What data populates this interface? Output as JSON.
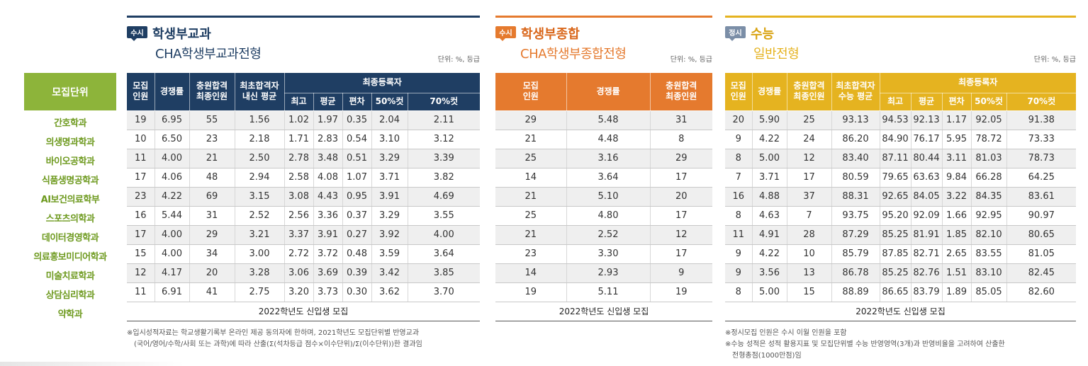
{
  "units": {
    "header": "모집단위",
    "items": [
      "간호학과",
      "의생명과학과",
      "바이오공학과",
      "식품생명공학과",
      "AI보건의료학부",
      "스포츠의학과",
      "데이터경영학과",
      "의료홍보미디어학과",
      "미술치료학과",
      "상담심리학과",
      "약학과"
    ]
  },
  "s1": {
    "badge": "수시",
    "title": "학생부교과",
    "subtitle": "CHA학생부교과전형",
    "unit_note": "단위: %, 등급",
    "headers": {
      "recruit": [
        "모집",
        "인원"
      ],
      "competition": "경쟁률",
      "add_pass": [
        "충원합격",
        "최종인원"
      ],
      "final_pass": [
        "최초합격자",
        "내신 평균"
      ],
      "group": "최종등록자",
      "sub": [
        "최고",
        "평균",
        "편차",
        "50%컷",
        "70%컷"
      ]
    },
    "rows": [
      [
        "19",
        "6.95",
        "55",
        "1.56",
        "1.02",
        "1.97",
        "0.35",
        "2.04",
        "2.11"
      ],
      [
        "10",
        "6.50",
        "23",
        "2.18",
        "1.71",
        "2.83",
        "0.54",
        "3.10",
        "3.12"
      ],
      [
        "11",
        "4.00",
        "21",
        "2.50",
        "2.78",
        "3.48",
        "0.51",
        "3.29",
        "3.39"
      ],
      [
        "17",
        "4.06",
        "48",
        "2.94",
        "2.58",
        "4.08",
        "1.07",
        "3.71",
        "3.82"
      ],
      [
        "23",
        "4.22",
        "69",
        "3.15",
        "3.08",
        "4.43",
        "0.95",
        "3.91",
        "4.69"
      ],
      [
        "16",
        "5.44",
        "31",
        "2.52",
        "2.56",
        "3.36",
        "0.37",
        "3.29",
        "3.55"
      ],
      [
        "17",
        "4.00",
        "29",
        "3.21",
        "3.37",
        "3.91",
        "0.27",
        "3.92",
        "4.00"
      ],
      [
        "15",
        "4.00",
        "34",
        "3.00",
        "2.72",
        "3.72",
        "0.48",
        "3.59",
        "3.64"
      ],
      [
        "12",
        "4.17",
        "20",
        "3.28",
        "3.06",
        "3.69",
        "0.39",
        "3.42",
        "3.85"
      ],
      [
        "11",
        "6.91",
        "41",
        "2.75",
        "3.20",
        "3.73",
        "0.30",
        "3.62",
        "3.70"
      ]
    ],
    "footer": "2022학년도 신입생 모집",
    "notes": [
      "※입시성적자료는 학교생활기록부 온라인 제공 동의자에 한하며, 2021학년도 모집단위별 반영교과",
      "(국어/영어/수학/사회 또는 과학)에 따라 산출(Σ(석차등급 점수×이수단위)/Σ(이수단위))한 결과임"
    ]
  },
  "s2": {
    "badge": "수시",
    "title": "학생부종합",
    "subtitle": "CHA학생부종합전형",
    "unit_note": "단위: %, 등급",
    "headers": {
      "recruit": [
        "모집",
        "인원"
      ],
      "competition": "경쟁률",
      "add_pass": [
        "충원합격",
        "최종인원"
      ]
    },
    "rows": [
      [
        "29",
        "5.48",
        "31"
      ],
      [
        "21",
        "4.48",
        "8"
      ],
      [
        "25",
        "3.16",
        "29"
      ],
      [
        "14",
        "3.64",
        "17"
      ],
      [
        "21",
        "5.10",
        "20"
      ],
      [
        "25",
        "4.80",
        "17"
      ],
      [
        "21",
        "2.52",
        "12"
      ],
      [
        "23",
        "3.30",
        "17"
      ],
      [
        "14",
        "2.93",
        "9"
      ],
      [
        "19",
        "5.11",
        "19"
      ]
    ],
    "footer": "2022학년도 신입생 모집"
  },
  "s3": {
    "badge": "정시",
    "title": "수능",
    "subtitle": "일반전형",
    "unit_note": "단위: %, 등급",
    "headers": {
      "recruit": [
        "모집",
        "인원"
      ],
      "competition": "경쟁률",
      "add_pass": [
        "충원합격",
        "최종인원"
      ],
      "final_pass": [
        "최초합격자",
        "수능 평균"
      ],
      "group": "최종등록자",
      "sub": [
        "최고",
        "평균",
        "편차",
        "50%컷",
        "70%컷"
      ]
    },
    "rows": [
      [
        "20",
        "5.90",
        "25",
        "93.13",
        "94.53",
        "92.13",
        "1.17",
        "92.05",
        "91.38"
      ],
      [
        "9",
        "4.22",
        "24",
        "86.20",
        "84.90",
        "76.17",
        "5.95",
        "78.72",
        "73.33"
      ],
      [
        "8",
        "5.00",
        "12",
        "83.40",
        "87.11",
        "80.44",
        "3.11",
        "81.03",
        "78.73"
      ],
      [
        "7",
        "3.71",
        "17",
        "80.59",
        "79.65",
        "63.63",
        "9.84",
        "66.28",
        "64.25"
      ],
      [
        "16",
        "4.88",
        "37",
        "88.31",
        "92.65",
        "84.05",
        "3.22",
        "84.35",
        "83.61"
      ],
      [
        "8",
        "4.63",
        "7",
        "93.75",
        "95.20",
        "92.09",
        "1.66",
        "92.95",
        "90.97"
      ],
      [
        "11",
        "4.91",
        "28",
        "87.29",
        "85.25",
        "81.91",
        "1.85",
        "82.10",
        "80.65"
      ],
      [
        "9",
        "4.22",
        "10",
        "85.79",
        "87.85",
        "82.71",
        "2.65",
        "83.55",
        "81.05"
      ],
      [
        "9",
        "3.56",
        "13",
        "86.78",
        "85.25",
        "82.76",
        "1.51",
        "83.10",
        "82.45"
      ],
      [
        "8",
        "5.00",
        "15",
        "88.89",
        "86.65",
        "83.79",
        "1.89",
        "85.05",
        "82.60"
      ]
    ],
    "footer": "2022학년도 신입생 모집",
    "notes": [
      "※정시모집 인원은 수시 이월 인원을 포함",
      "※수능 성적은 성적 활용지표 및 모집단위별 수능 반영영역(3개)과 반영비율을 고려하여 산출한",
      "전형총점(1000만점)임"
    ]
  }
}
